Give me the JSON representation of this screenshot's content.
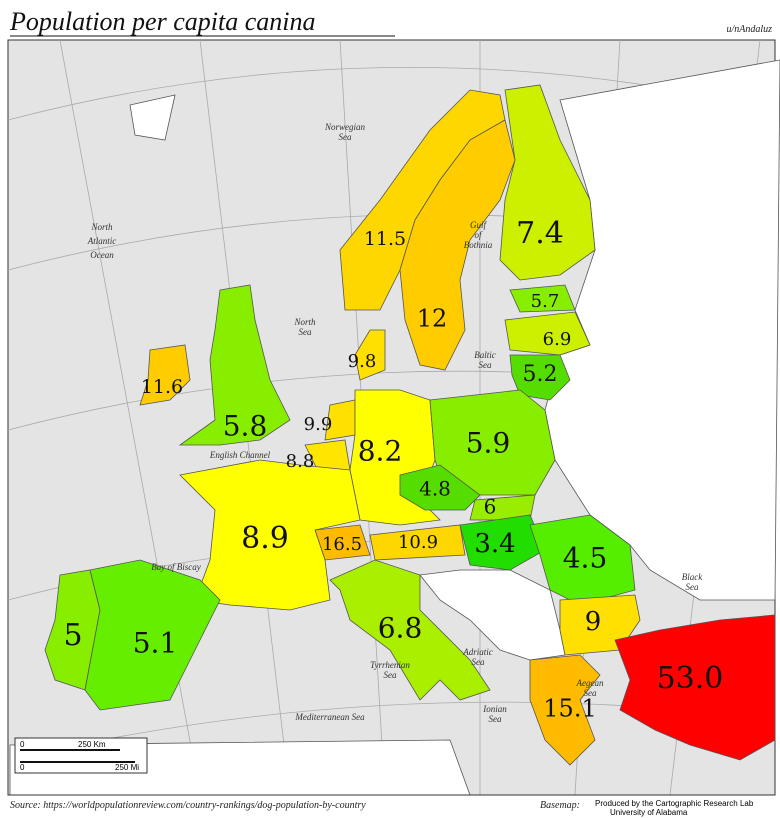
{
  "header": {
    "title": "Population per capita canina",
    "attribution": "u/nAndaluz"
  },
  "regions": [
    {
      "label": "7.4",
      "color": "#ccf000"
    },
    {
      "label": "11.5",
      "color": "#ffd700"
    },
    {
      "label": "12",
      "color": "#ffcc00"
    },
    {
      "label": "5.7",
      "color": "#88ee00"
    },
    {
      "label": "6.9",
      "color": "#ccf000"
    },
    {
      "label": "5.2",
      "color": "#55dd00"
    },
    {
      "label": "9.8",
      "color": "#ffe000"
    },
    {
      "label": "11.6",
      "color": "#ffcc00"
    },
    {
      "label": "5.8",
      "color": "#88ee00"
    },
    {
      "label": "9.9",
      "color": "#ffe000"
    },
    {
      "label": "8.8",
      "color": "#ffe600"
    },
    {
      "label": "8.2",
      "color": "#ffff00"
    },
    {
      "label": "5.9",
      "color": "#88ee00"
    },
    {
      "label": "4.8",
      "color": "#55dd00"
    },
    {
      "label": "6",
      "color": "#99ee00"
    },
    {
      "label": "3.4",
      "color": "#22dd00"
    },
    {
      "label": "4.5",
      "color": "#55ee00"
    },
    {
      "label": "16.5",
      "color": "#ffbb00"
    },
    {
      "label": "10.9",
      "color": "#ffd700"
    },
    {
      "label": "8.9",
      "color": "#ffff00"
    },
    {
      "label": "5",
      "color": "#88ee00"
    },
    {
      "label": "5.1",
      "color": "#66ee00"
    },
    {
      "label": "6.8",
      "color": "#aaee00"
    },
    {
      "label": "9",
      "color": "#ffe000"
    },
    {
      "label": "15.1",
      "color": "#ffbb00"
    },
    {
      "label": "53.0",
      "color": "#ff0000"
    }
  ],
  "seas": [
    {
      "lines": [
        "Norwegian",
        "Sea"
      ]
    },
    {
      "lines": [
        "North",
        "Atlantic",
        "Ocean"
      ]
    },
    {
      "lines": [
        "Gulf",
        "of",
        "Bothnia"
      ]
    },
    {
      "lines": [
        "North",
        "Sea"
      ]
    },
    {
      "lines": [
        "Baltic",
        "Sea"
      ]
    },
    {
      "lines": [
        "English Channel"
      ]
    },
    {
      "lines": [
        "Bay of Biscay"
      ]
    },
    {
      "lines": [
        "Tyrrhenian",
        "Sea"
      ]
    },
    {
      "lines": [
        "Adriatic",
        "Sea"
      ]
    },
    {
      "lines": [
        "Ionian",
        "Sea"
      ]
    },
    {
      "lines": [
        "Aegean",
        "Sea"
      ]
    },
    {
      "lines": [
        "Black",
        "Sea"
      ]
    },
    {
      "lines": [
        "Mediterranean Sea"
      ]
    }
  ],
  "scale": {
    "km": [
      "0",
      "250 Km"
    ],
    "mi": [
      "0",
      "250 Mi"
    ]
  },
  "footer": {
    "source": "Source: https://worldpopulationreview.com/country-rankings/dog-population-by-country",
    "basemap_label": "Basemap:",
    "basemap_credit": [
      "Produced by the Cartographic Research Lab",
      "University of Alabama"
    ]
  }
}
